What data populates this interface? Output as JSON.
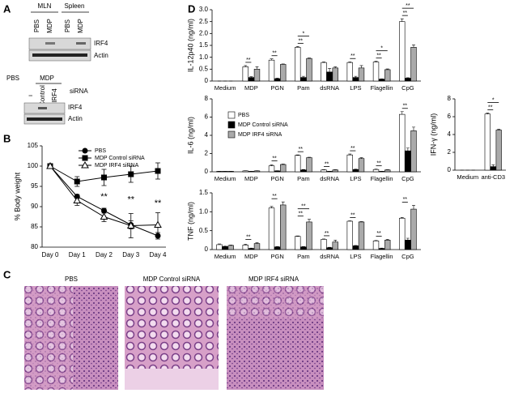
{
  "panel_labels": [
    "A",
    "B",
    "C",
    "D"
  ],
  "blots": [
    {
      "groups": [
        {
          "label": "MLN",
          "lanes": [
            "PBS",
            "MDP"
          ]
        },
        {
          "label": "Spleen",
          "lanes": [
            "PBS",
            "MDP"
          ]
        }
      ],
      "rows": [
        "IRF4",
        "Actin"
      ]
    },
    {
      "header": "PBS",
      "group": "MDP",
      "lanes": [
        "ı",
        "Control",
        "IRF4"
      ],
      "lane_title": "siRNA",
      "rows": [
        "IRF4",
        "Actin"
      ]
    }
  ],
  "histology": {
    "titles": [
      "PBS",
      "MDP Control siRNA",
      "MDP IRF4 siRNA"
    ]
  },
  "chart_data": [
    {
      "type": "line",
      "ylabel": "% Body weight",
      "categories": [
        "Day 0",
        "Day 1",
        "Day 2",
        "Day 3",
        "Day 4"
      ],
      "ylim": [
        80,
        105
      ],
      "yticks": [
        80,
        85,
        90,
        95,
        100,
        105
      ],
      "legend": "upper right",
      "series": [
        {
          "name": "PBS",
          "color": "#000000",
          "marker": "circle",
          "values": [
            100,
            92.5,
            89,
            85.5,
            82.8
          ],
          "errors": [
            0,
            0.5,
            0.6,
            1.0,
            0.8
          ]
        },
        {
          "name": "MDP Control siRNA",
          "color": "#000000",
          "marker": "square",
          "values": [
            100,
            96.2,
            97.2,
            98,
            98.8
          ],
          "errors": [
            0,
            1.2,
            2.0,
            2.0,
            2.0
          ]
        },
        {
          "name": "MDP IRF4 siRNA",
          "color": "#000000",
          "marker": "triangle",
          "values": [
            100,
            91.5,
            87.5,
            85.3,
            85.5
          ],
          "errors": [
            0,
            1.2,
            1.2,
            3.0,
            3.0
          ]
        }
      ],
      "annotations": [
        {
          "category": "Day 2",
          "label": "**"
        },
        {
          "category": "Day 3",
          "label": "**"
        },
        {
          "category": "Day 4",
          "label": "**"
        }
      ]
    },
    {
      "type": "bar",
      "ylabel": "IL-12p40 (ng/ml)",
      "categories": [
        "Medium",
        "MDP",
        "PGN",
        "Pam",
        "dsRNA",
        "LPS",
        "Flagellin",
        "CpG"
      ],
      "ylim": [
        0,
        3
      ],
      "yticks": [
        0,
        0.5,
        {
          "value": 1,
          "label": "1.0"
        },
        1.5,
        {
          "value": 2,
          "label": "2.0"
        },
        2.5,
        {
          "value": 3,
          "label": "3.0"
        }
      ],
      "series": [
        {
          "color": "#ffffff",
          "values": [
            0,
            0.6,
            0.88,
            1.42,
            0.78,
            0.78,
            0.8,
            2.5
          ],
          "errors": [
            0,
            0.05,
            0.05,
            0.03,
            0.03,
            0.03,
            0.03,
            0.12
          ]
        },
        {
          "color": "#000000",
          "values": [
            0,
            0.15,
            0.1,
            0.15,
            0.38,
            0.15,
            0.08,
            0.12
          ],
          "errors": [
            0,
            0.03,
            0.02,
            0.05,
            0.15,
            0.05,
            0.01,
            0.02
          ]
        },
        {
          "color": "#aaaaaa",
          "values": [
            0,
            0.5,
            0.7,
            0.95,
            0.55,
            0.55,
            0.48,
            1.42
          ],
          "errors": [
            0,
            0.1,
            0.02,
            0.02,
            0.05,
            0.1,
            0.03,
            0.1
          ]
        }
      ],
      "annotations": [
        {
          "category": "MDP",
          "label": "**"
        },
        {
          "category": "PGN",
          "label": "**"
        },
        {
          "category": "Pam",
          "label": "**"
        },
        {
          "category": "Pam",
          "label": "*"
        },
        {
          "category": "LPS",
          "label": "**"
        },
        {
          "category": "Flagellin",
          "label": "**"
        },
        {
          "category": "Flagellin",
          "label": "*"
        },
        {
          "category": "CpG",
          "label": "**"
        },
        {
          "category": "CpG",
          "label": "**"
        }
      ]
    },
    {
      "type": "bar",
      "ylabel": "IL-6 (ng/ml)",
      "categories": [
        "Medium",
        "MDP",
        "PGN",
        "Pam",
        "dsRNA",
        "LPS",
        "Flagellin",
        "CpG"
      ],
      "ylim": [
        0,
        8
      ],
      "yticks": [
        0,
        2,
        4,
        6,
        8
      ],
      "legend": "center left",
      "series": [
        {
          "name": "PBS",
          "color": "#ffffff",
          "values": [
            0.05,
            0.1,
            0.65,
            1.8,
            0.2,
            1.85,
            0.25,
            6.3
          ],
          "errors": [
            0,
            0.02,
            0.1,
            0.05,
            0.03,
            0.1,
            0.05,
            0.3
          ]
        },
        {
          "name": "MDP Control siRNA",
          "color": "#000000",
          "values": [
            0.05,
            0.05,
            0.1,
            0.2,
            0.05,
            0.25,
            0.05,
            2.3
          ],
          "errors": [
            0,
            0,
            0.02,
            0.05,
            0.01,
            0.05,
            0.01,
            0.3
          ]
        },
        {
          "name": "MDP IRF4 siRNA",
          "color": "#aaaaaa",
          "values": [
            0.05,
            0.1,
            0.8,
            1.55,
            0.2,
            1.45,
            0.2,
            4.5
          ],
          "errors": [
            0,
            0.02,
            0.05,
            0.05,
            0.03,
            0.1,
            0.03,
            0.4
          ]
        }
      ],
      "annotations": [
        {
          "category": "PGN",
          "label": "**"
        },
        {
          "category": "Pam",
          "label": "**"
        },
        {
          "category": "dsRNA",
          "label": "**"
        },
        {
          "category": "LPS",
          "label": "**"
        },
        {
          "category": "Flagellin",
          "label": "**"
        },
        {
          "category": "CpG",
          "label": "**"
        }
      ]
    },
    {
      "type": "bar",
      "ylabel": "TNF (ng/ml)",
      "categories": [
        "Medium",
        "MDP",
        "PGN",
        "Pam",
        "dsRNA",
        "LPS",
        "Flagellin",
        "CpG"
      ],
      "ylim": [
        0,
        1.5
      ],
      "yticks": [
        0,
        0.5,
        {
          "value": 1,
          "label": "1.0"
        },
        1.5
      ],
      "series": [
        {
          "color": "#ffffff",
          "values": [
            0.13,
            0.12,
            1.1,
            0.35,
            0.27,
            0.75,
            0.23,
            0.83
          ],
          "errors": [
            0.02,
            0.02,
            0.04,
            0.01,
            0.01,
            0.01,
            0.01,
            0.02
          ]
        },
        {
          "color": "#000000",
          "values": [
            0.08,
            0.03,
            0.07,
            0.07,
            0.05,
            0.1,
            0.03,
            0.25
          ],
          "errors": [
            0.01,
            0.01,
            0.01,
            0.01,
            0.01,
            0.01,
            0.01,
            0.05
          ]
        },
        {
          "color": "#aaaaaa",
          "values": [
            0.11,
            0.16,
            1.18,
            0.73,
            0.2,
            0.73,
            0.25,
            1.07
          ],
          "errors": [
            0.01,
            0.02,
            0.08,
            0.07,
            0.05,
            0.01,
            0.02,
            0.1
          ]
        }
      ],
      "annotations": [
        {
          "category": "MDP",
          "label": "**"
        },
        {
          "category": "PGN",
          "label": "**"
        },
        {
          "category": "Pam",
          "label": "**"
        },
        {
          "category": "Pam",
          "label": "**"
        },
        {
          "category": "dsRNA",
          "label": "**"
        },
        {
          "category": "LPS",
          "label": "**"
        },
        {
          "category": "Flagellin",
          "label": "**"
        },
        {
          "category": "CpG",
          "label": "**"
        }
      ]
    },
    {
      "type": "bar",
      "ylabel": "IFN-γ (ng/ml)",
      "categories": [
        "Medium",
        "anti-CD3"
      ],
      "ylim": [
        0,
        8
      ],
      "yticks": [
        0,
        2,
        4,
        6,
        8
      ],
      "series": [
        {
          "color": "#ffffff",
          "values": [
            0,
            6.3
          ],
          "errors": [
            0,
            0.1
          ]
        },
        {
          "color": "#000000",
          "values": [
            0,
            0.4
          ],
          "errors": [
            0,
            0.2
          ]
        },
        {
          "color": "#aaaaaa",
          "values": [
            0,
            4.5
          ],
          "errors": [
            0,
            0.1
          ]
        }
      ],
      "annotations": [
        {
          "category": "anti-CD3",
          "label": "**"
        },
        {
          "category": "anti-CD3",
          "label": "*"
        }
      ]
    }
  ]
}
